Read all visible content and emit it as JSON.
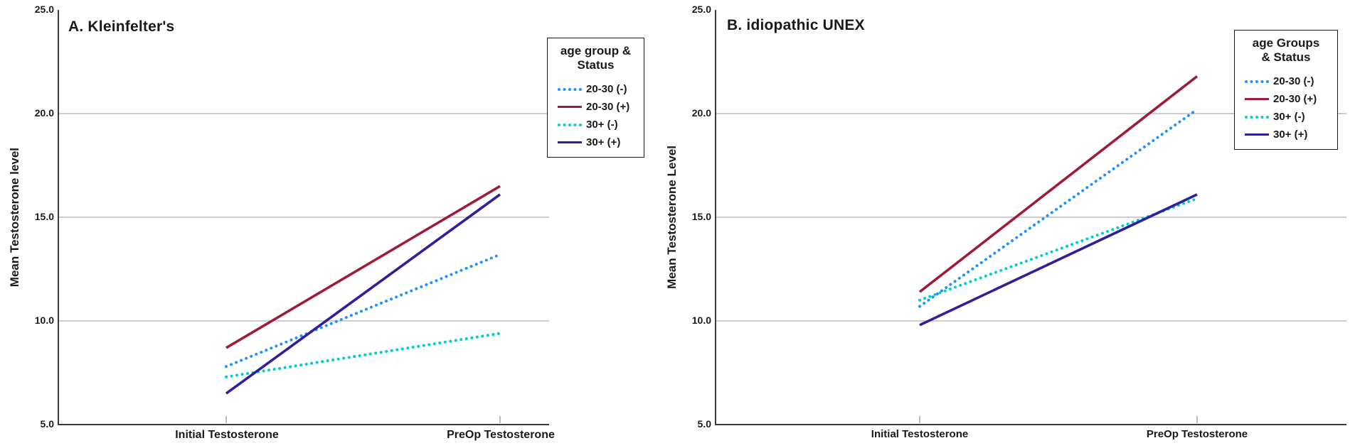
{
  "chart_data": [
    {
      "type": "line",
      "panel_label": "A",
      "title": "A. Kleinfelter's",
      "xlabel": "",
      "ylabel": "Mean Testosterone level",
      "categories": [
        "Initial Testosterone",
        "PreOp Testosterone"
      ],
      "ylim": [
        5.0,
        25.0
      ],
      "yticks": [
        5.0,
        10.0,
        15.0,
        20.0,
        25.0
      ],
      "ytick_labels": [
        "5.0",
        "10.0",
        "15.0",
        "20.0",
        "25.0"
      ],
      "grid": "horizontal-gridlines",
      "gridline_color": "#c6c6c6",
      "legend_position": "top-right",
      "legend_title": "age group & Status",
      "legend_title_lines": [
        "age group  &",
        "Status"
      ],
      "series": [
        {
          "name": "20-30 (-)",
          "line_style": "dotted",
          "color": "#1E90FF",
          "values": [
            7.8,
            13.2
          ]
        },
        {
          "name": "20-30 (+)",
          "line_style": "solid",
          "color": "#9E1B3A",
          "values": [
            8.7,
            16.5
          ]
        },
        {
          "name": "30+ (-)",
          "line_style": "dotted",
          "color": "#00CDCE",
          "values": [
            7.3,
            9.4
          ]
        },
        {
          "name": "30+ (+)",
          "line_style": "solid",
          "color": "#2E2099",
          "values": [
            6.5,
            16.1
          ]
        }
      ]
    },
    {
      "type": "line",
      "panel_label": "B",
      "title": "B. idiopathic UNEX",
      "xlabel": "",
      "ylabel": "Mean Testosterone Level",
      "categories": [
        "Initial Testosterone",
        "PreOp Testosterone"
      ],
      "ylim": [
        5.0,
        25.0
      ],
      "yticks": [
        5.0,
        10.0,
        15.0,
        20.0,
        25.0
      ],
      "ytick_labels": [
        "5.0",
        "10.0",
        "15.0",
        "20.0",
        "25.0"
      ],
      "grid": "horizontal-gridlines",
      "gridline_color": "#c6c6c6",
      "legend_position": "top-right",
      "legend_title": "age Groups & Status",
      "legend_title_lines": [
        "age Groups",
        "& Status"
      ],
      "series": [
        {
          "name": "20-30 (-)",
          "line_style": "dotted",
          "color": "#1E90FF",
          "values": [
            10.7,
            20.2
          ]
        },
        {
          "name": "20-30 (+)",
          "line_style": "solid",
          "color": "#9E1B3A",
          "values": [
            11.4,
            21.8
          ]
        },
        {
          "name": "30+ (-)",
          "line_style": "dotted",
          "color": "#00CDCE",
          "values": [
            11.0,
            15.9
          ]
        },
        {
          "name": "30+ (+)",
          "line_style": "solid",
          "color": "#2E2099",
          "values": [
            9.8,
            16.1
          ]
        }
      ]
    }
  ]
}
